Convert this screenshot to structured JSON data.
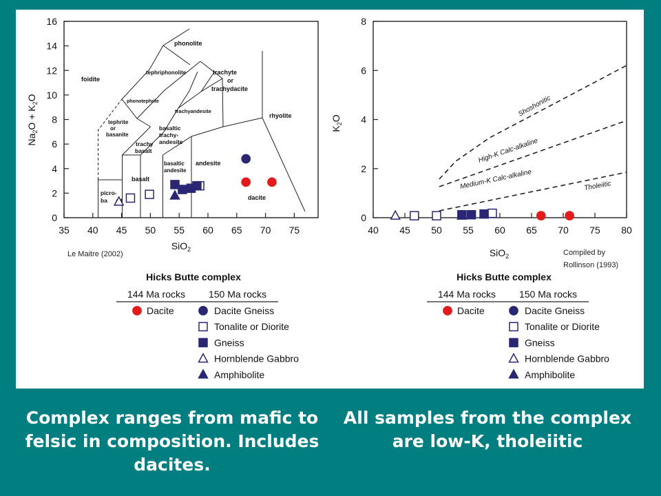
{
  "colors": {
    "background": "#017f80",
    "navy": "#2a2673",
    "red": "#e31b1b",
    "dashed": "#222222"
  },
  "tas": {
    "y_ticks": [
      "16",
      "14",
      "12",
      "10",
      "8",
      "6",
      "4",
      "2",
      "0"
    ],
    "x_ticks": [
      "35",
      "40",
      "45",
      "50",
      "55",
      "60",
      "65",
      "70",
      "75"
    ],
    "ylabel": {
      "p1": "Na",
      "s1": "2",
      "p2": "O + K",
      "s2": "2",
      "p3": "O"
    },
    "xlabel": {
      "p1": "SiO",
      "s1": "2"
    },
    "fields": {
      "foidite": "foidite",
      "phonolite": "phonolite",
      "tephriphonolite": "tephriphonolite",
      "phonotephrite": "phonotephrite",
      "trachyandesite": "trachyandesite",
      "trachyte": "trachyte",
      "or": "or",
      "trachydacite": "trachydacite",
      "tephrite": "tephrite",
      "basanite": "basanite",
      "basaltic": "basaltic",
      "trachy_dash": "trachy-",
      "andesite": "andesite",
      "trachy": "trachy",
      "basalt": "basalt",
      "rhyolite": "rhyolite",
      "basaltic_andesite_1": "basaltic",
      "basaltic_andesite_2": "andesite",
      "dacite": "dacite",
      "picro": "picro-",
      "bas": "ba",
      "alt": "alt"
    },
    "source": "Le Maitre (2002)"
  },
  "k2o": {
    "y_ticks": [
      "8",
      "6",
      "4",
      "2",
      "0"
    ],
    "x_ticks": [
      "40",
      "45",
      "50",
      "55",
      "60",
      "65",
      "70",
      "75",
      "80"
    ],
    "ylabel": {
      "p1": "K",
      "s1": "2",
      "p2": "O"
    },
    "xlabel": {
      "p1": "SiO",
      "s1": "2"
    },
    "series_labels": {
      "shoshonitic": "Shoshonitic",
      "highk": "High-K Calc-alkaline",
      "mediumk": "Medium-K Calc-alkaline",
      "tholeiitic": "Tholeiitic"
    },
    "source_1": "Compiled by",
    "source_2": "Rollinson (1993)"
  },
  "legend": {
    "title": "Hicks Butte complex",
    "col1": "144 Ma rocks",
    "col2": "150 Ma rocks",
    "items": [
      "Dacite",
      "Dacite Gneiss",
      "Tonalite or Diorite",
      "Gneiss",
      "Hornblende Gabbro",
      "Amphibolite"
    ]
  },
  "captions": {
    "left": "Complex ranges from mafic to felsic in composition. Includes dacites.",
    "right": "All samples from the complex are low-K, tholeiitic"
  },
  "chart_data": [
    {
      "type": "scatter",
      "xlim": [
        35,
        79
      ],
      "ylim": [
        0,
        16
      ],
      "series": [
        {
          "name": "Dacite",
          "points": [
            [
              66.5,
              2.9
            ],
            [
              71,
              2.9
            ]
          ]
        },
        {
          "name": "Dacite Gneiss",
          "points": [
            [
              66.5,
              4.8
            ]
          ]
        },
        {
          "name": "Tonalite or Diorite",
          "points": [
            [
              46.5,
              1.6
            ],
            [
              49.8,
              1.9
            ],
            [
              58.5,
              2.6
            ]
          ]
        },
        {
          "name": "Gneiss",
          "points": [
            [
              54.2,
              2.7
            ],
            [
              55.5,
              2.3
            ],
            [
              57,
              2.4
            ],
            [
              58,
              2.6
            ]
          ]
        },
        {
          "name": "Hornblende Gabbro",
          "points": [
            [
              44.5,
              1.3
            ]
          ]
        },
        {
          "name": "Amphibolite",
          "points": [
            [
              54.2,
              1.8
            ]
          ]
        }
      ]
    },
    {
      "type": "scatter",
      "xlim": [
        40,
        80
      ],
      "ylim": [
        0,
        8
      ],
      "series": [
        {
          "name": "Dacite",
          "points": [
            [
              66.5,
              0.08
            ],
            [
              71,
              0.08
            ]
          ]
        },
        {
          "name": "Tonalite or Diorite",
          "points": [
            [
              46.5,
              0.08
            ],
            [
              50,
              0.08
            ],
            [
              58.8,
              0.18
            ]
          ]
        },
        {
          "name": "Gneiss",
          "points": [
            [
              54,
              0.12
            ],
            [
              55.5,
              0.12
            ],
            [
              57.5,
              0.15
            ]
          ]
        },
        {
          "name": "Hornblende Gabbro",
          "points": [
            [
              43.5,
              0.08
            ]
          ]
        },
        {
          "name": "Amphibolite",
          "points": [
            [
              54,
              0.08
            ]
          ]
        }
      ]
    }
  ]
}
